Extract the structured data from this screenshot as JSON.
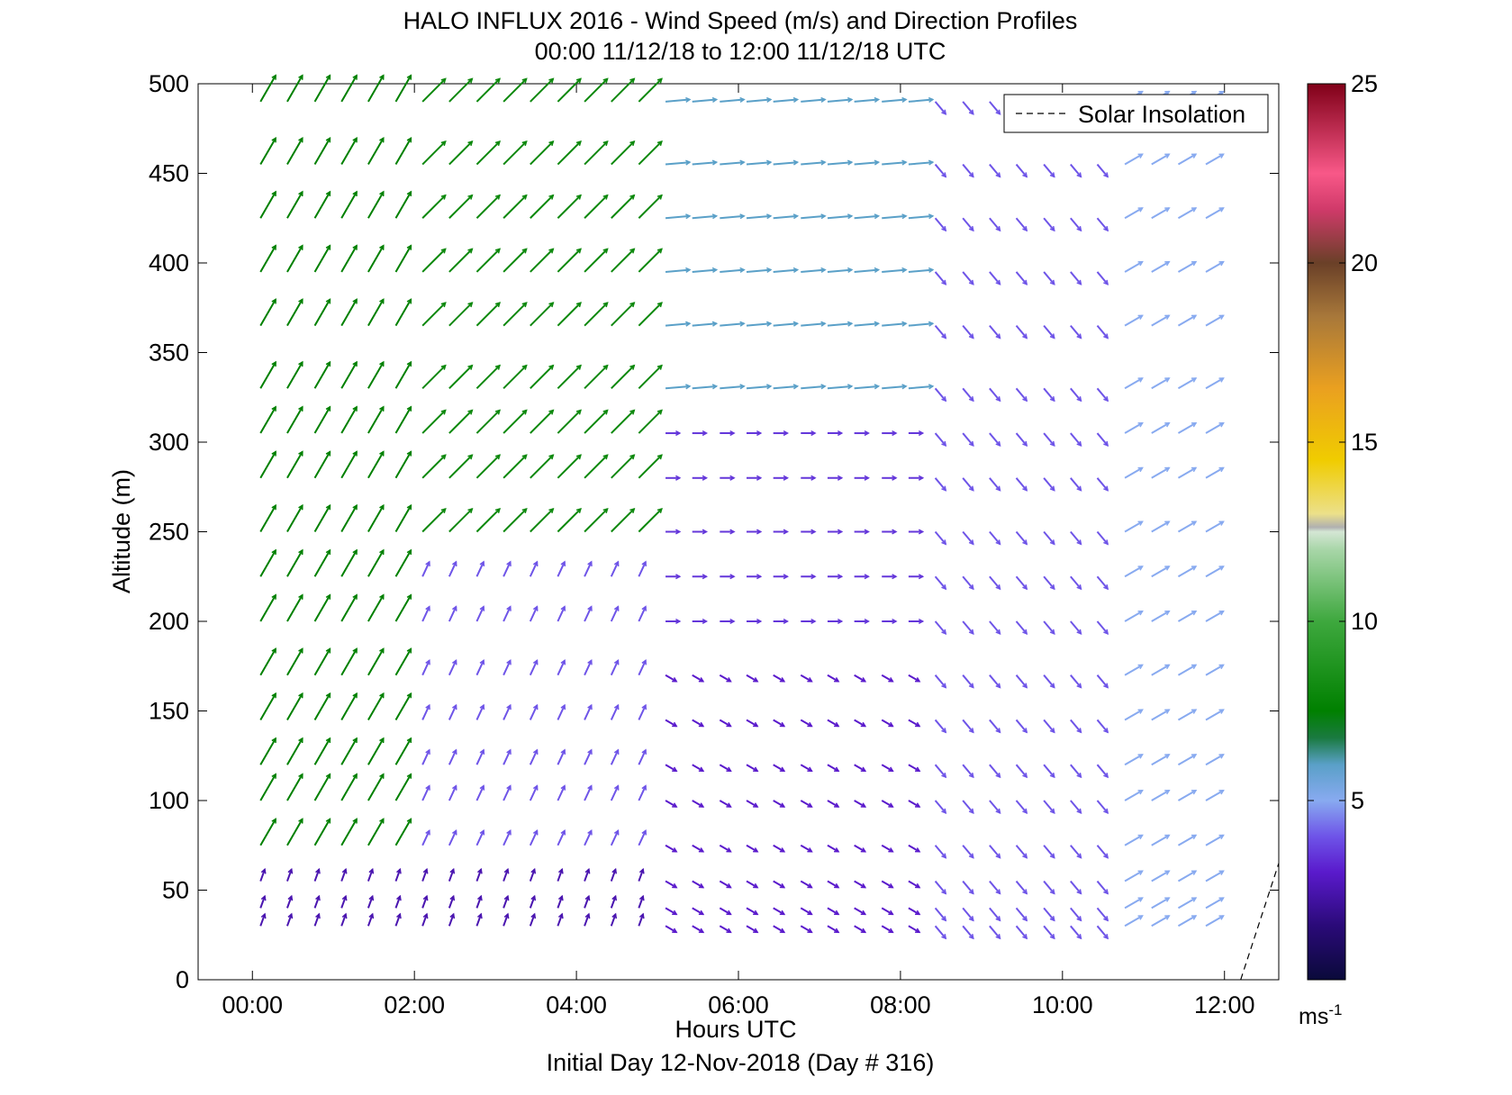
{
  "chart_data": {
    "type": "quiver",
    "title": "HALO INFLUX 2016 - Wind Speed (m/s) and Direction Profiles",
    "subtitle": "00:00 11/12/18 to 12:00 11/12/18  UTC",
    "xlabel": "Hours UTC",
    "ylabel": "Altitude (m)",
    "footer": "Initial Day 12-Nov-2018 (Day # 316)",
    "xlim": [
      -0.67,
      12.67
    ],
    "ylim": [
      0,
      500
    ],
    "x_ticks": [
      0,
      2,
      4,
      6,
      8,
      10,
      12
    ],
    "x_tick_labels": [
      "00:00",
      "02:00",
      "04:00",
      "06:00",
      "08:00",
      "10:00",
      "12:00"
    ],
    "y_ticks": [
      0,
      50,
      100,
      150,
      200,
      250,
      300,
      350,
      400,
      450,
      500
    ],
    "y_tick_labels": [
      "0",
      "50",
      "100",
      "150",
      "200",
      "250",
      "300",
      "350",
      "400",
      "450",
      "500"
    ],
    "legend": {
      "entries": [
        "Solar Insolation"
      ],
      "position": "top-right"
    },
    "solar_insolation": {
      "x": [
        12.2,
        12.67
      ],
      "y": [
        0,
        65
      ]
    },
    "colorbar": {
      "min": 0,
      "max": 25,
      "ticks": [
        5,
        10,
        15,
        20,
        25
      ],
      "tick_labels": [
        "5",
        "10",
        "15",
        "20",
        "25"
      ],
      "unit_label": "ms",
      "unit_exponent": "-1"
    },
    "times_hours": [
      0.1,
      0.43,
      0.77,
      1.1,
      1.43,
      1.77,
      2.1,
      2.43,
      2.77,
      3.1,
      3.43,
      3.77,
      4.1,
      4.43,
      4.77,
      5.1,
      5.43,
      5.77,
      6.1,
      6.43,
      6.77,
      7.1,
      7.43,
      7.77,
      8.1,
      8.43,
      8.77,
      9.1,
      9.43,
      9.77,
      10.1,
      10.43,
      10.77,
      11.1,
      11.43,
      11.77
    ],
    "altitudes_m": [
      30,
      40,
      55,
      75,
      100,
      120,
      145,
      170,
      200,
      225,
      250,
      280,
      305,
      330,
      365,
      395,
      425,
      455,
      490
    ],
    "wind_field_note": "Vectors drawn as speed/direction per cell; values estimated from the figure",
    "regimes": [
      {
        "hours": [
          0,
          5
        ],
        "alt": [
          0,
          60
        ],
        "speed": 2.5,
        "dir_from": 200
      },
      {
        "hours": [
          0,
          2
        ],
        "alt": [
          60,
          500
        ],
        "speed": 7.5,
        "dir_from": 210
      },
      {
        "hours": [
          2,
          5
        ],
        "alt": [
          60,
          230
        ],
        "speed": 4.0,
        "dir_from": 205
      },
      {
        "hours": [
          2,
          5
        ],
        "alt": [
          230,
          500
        ],
        "speed": 8.0,
        "dir_from": 225
      },
      {
        "hours": [
          5,
          8.3
        ],
        "alt": [
          0,
          180
        ],
        "speed": 3.0,
        "dir_from": 300
      },
      {
        "hours": [
          5,
          8.3
        ],
        "alt": [
          180,
          330
        ],
        "speed": 3.5,
        "dir_from": 270
      },
      {
        "hours": [
          5,
          8.3
        ],
        "alt": [
          330,
          500
        ],
        "speed": 6.0,
        "dir_from": 265
      },
      {
        "hours": [
          8.3,
          10.5
        ],
        "alt": [
          0,
          500
        ],
        "speed": 4.0,
        "dir_from": 320
      },
      {
        "hours": [
          10.5,
          12
        ],
        "alt": [
          0,
          500
        ],
        "speed": 5.0,
        "dir_from": 240
      }
    ]
  }
}
